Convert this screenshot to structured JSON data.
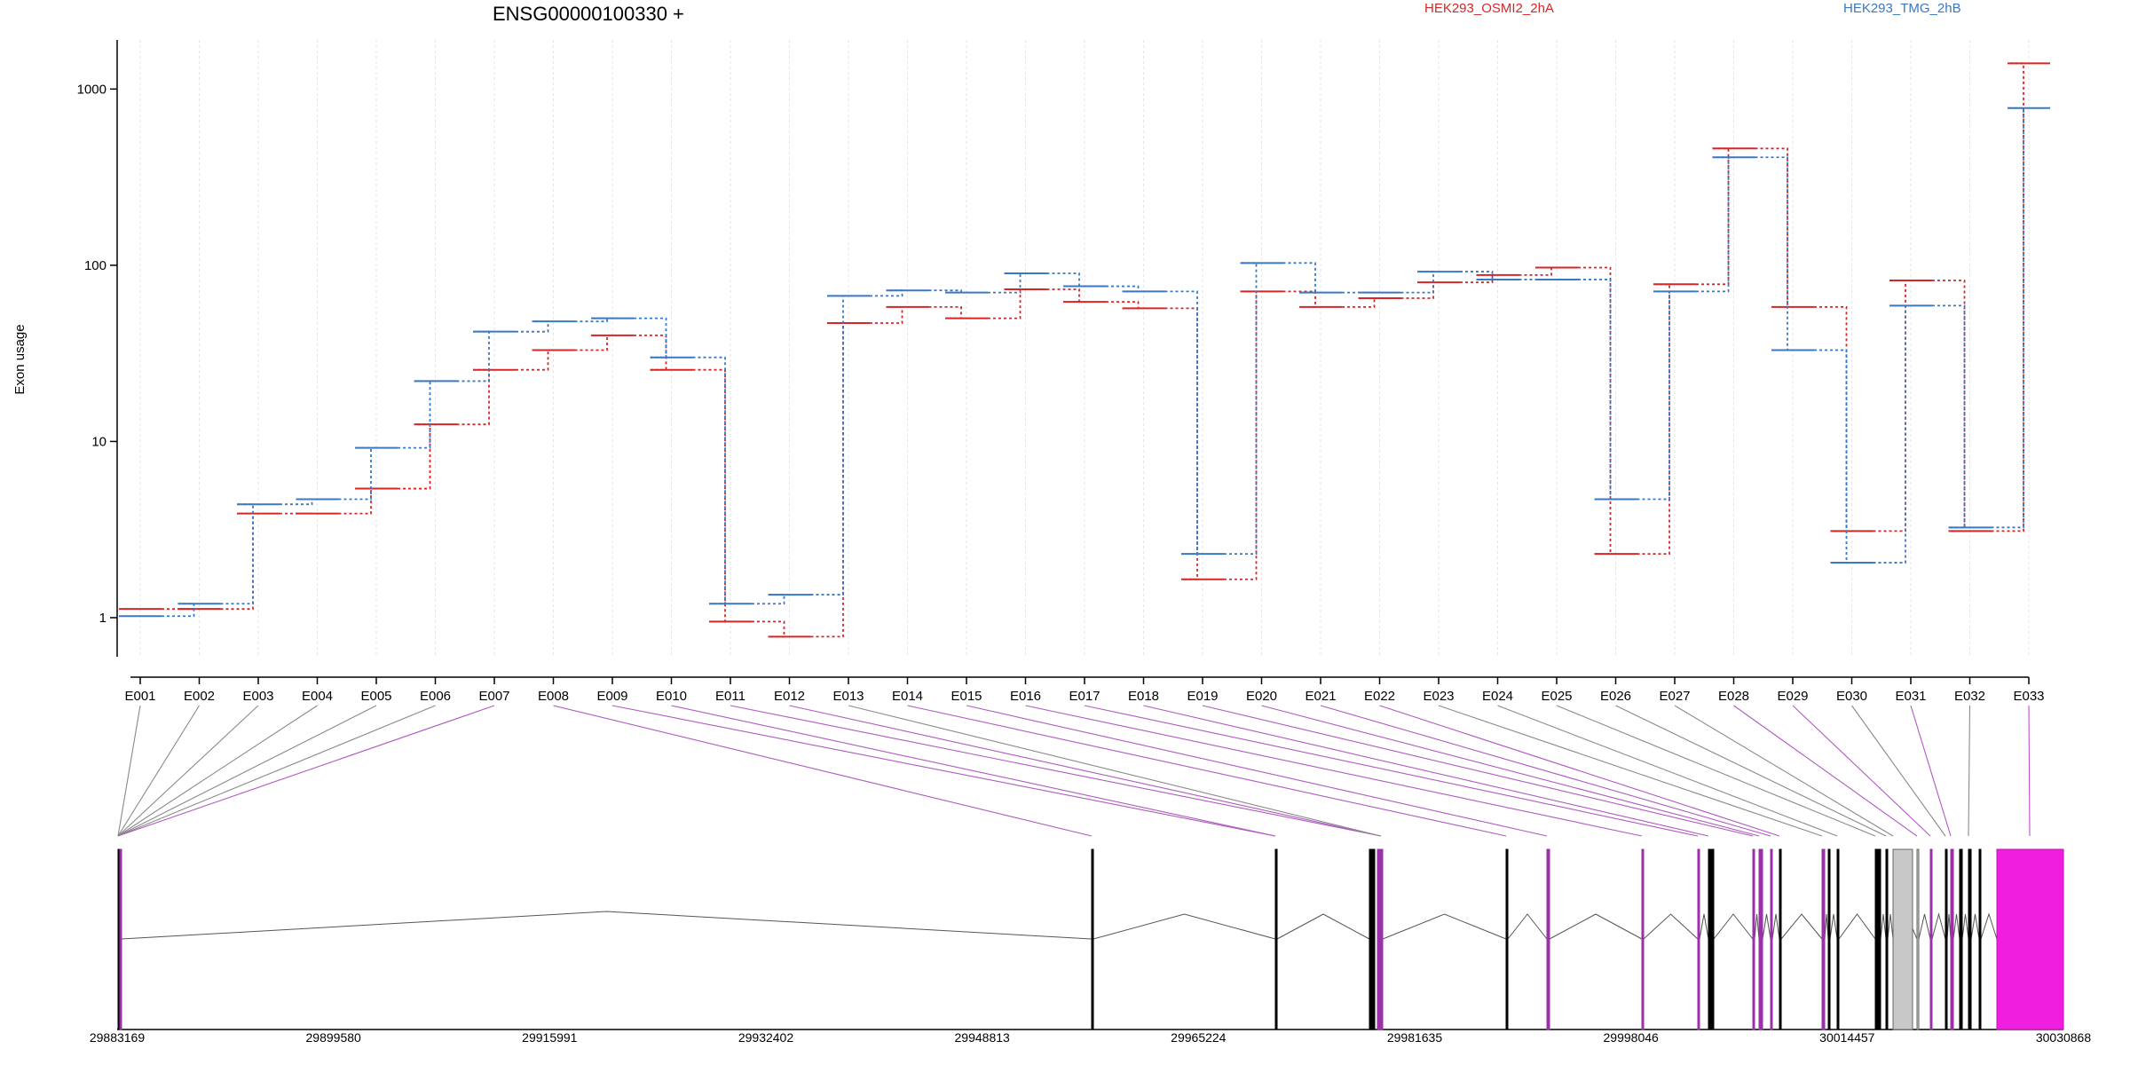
{
  "chart_data": {
    "type": "line",
    "title": "ENSG00000100330 +",
    "ylabel": "Exon usage",
    "yscale": "log",
    "ylim": [
      0.6,
      1900
    ],
    "yticks": [
      "1",
      "10",
      "100",
      "1000"
    ],
    "categories": [
      "E001",
      "E002",
      "E003",
      "E004",
      "E005",
      "E006",
      "E007",
      "E008",
      "E009",
      "E010",
      "E011",
      "E012",
      "E013",
      "E014",
      "E015",
      "E016",
      "E017",
      "E018",
      "E019",
      "E020",
      "E021",
      "E022",
      "E023",
      "E024",
      "E025",
      "E026",
      "E027",
      "E028",
      "E029",
      "E030",
      "E031",
      "E032",
      "E033"
    ],
    "series": [
      {
        "name": "HEK293_OSMI2_2hA",
        "color": "#d62728",
        "values": [
          1.12,
          1.12,
          3.9,
          3.9,
          5.4,
          12.5,
          25.5,
          33,
          40,
          25.5,
          0.95,
          0.78,
          47,
          58,
          50,
          73,
          62,
          57,
          1.65,
          71,
          58,
          65,
          80,
          88,
          97,
          2.3,
          78,
          460,
          58,
          3.1,
          82,
          3.1,
          1400
        ]
      },
      {
        "name": "HEK293_TMG_2hB",
        "color": "#3a78c2",
        "values": [
          1.02,
          1.2,
          4.4,
          4.7,
          9.2,
          22,
          42,
          48,
          50,
          30,
          1.2,
          1.35,
          67,
          72,
          70,
          90,
          76,
          71,
          2.3,
          103,
          70,
          70,
          92,
          83,
          83,
          4.7,
          71,
          410,
          33,
          2.05,
          59,
          3.25,
          780
        ]
      }
    ],
    "genome_axis": {
      "labels": [
        "29883169",
        "29899580",
        "29915991",
        "29932402",
        "29948813",
        "29965224",
        "29981635",
        "29998046",
        "30014457",
        "30030868"
      ],
      "range": [
        29883169,
        30030868
      ]
    },
    "exon_colors": {
      "significant": "#9b30a8",
      "normal": "#000000",
      "utr": "#c8c8c8",
      "highlight": "#f01fe0"
    }
  }
}
